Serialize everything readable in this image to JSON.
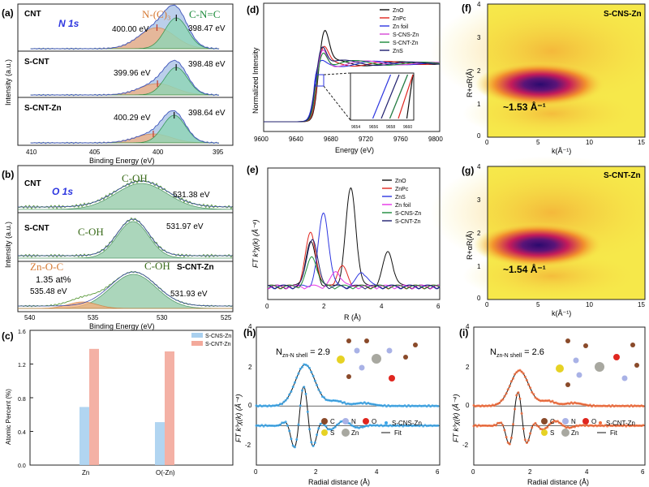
{
  "colors": {
    "zno": "#111111",
    "znpc": "#e0261f",
    "zn_foil": "#2d36e0",
    "zns": "#2d36e0",
    "scns_zn": "#d646d6",
    "scnt_zn": "#1b8a3a",
    "scnt_zn_r": "#20206e",
    "n_c3_fill": "#f3b07f",
    "cnc_fill": "#8fd6b6",
    "envelope_fill": "#aac3e6",
    "cnt_bar": "#a9d0ef",
    "cnz_bar": "#f3a99b",
    "map_low": "#2b0a6e",
    "map_mid": "#c51c5a",
    "map_high": "#f6e84a",
    "fit_marker": "#3aa6ea",
    "fit_marker2": "#f26b3a",
    "atom_c": "#8a4a2a",
    "atom_n": "#a9b2e6",
    "atom_o": "#e0261f",
    "atom_s": "#e6d224",
    "atom_zn": "#a8a8a0"
  },
  "panels": {
    "a": {
      "label": "(a)",
      "core": "N 1s",
      "peak_labels": {
        "nc3": "N-(C)₃",
        "cnc": "C-N=C"
      },
      "samples": [
        {
          "name": "CNT",
          "e1": "400.00 eV",
          "e2": "398.47 eV"
        },
        {
          "name": "S-CNT",
          "e1": "399.96 eV",
          "e2": "398.48 eV"
        },
        {
          "name": "S-CNT-Zn",
          "e1": "400.29 eV",
          "e2": "398.64 eV"
        }
      ],
      "ylabel": "Intensity (a.u.)",
      "xlabel": "Binding Energy (eV)",
      "xticks": [
        "410",
        "405",
        "400",
        "395"
      ]
    },
    "b": {
      "label": "(b)",
      "core": "O 1s",
      "samples": [
        {
          "name": "CNT",
          "peak": "C-OH",
          "e": "531.38 eV"
        },
        {
          "name": "S-CNT",
          "peak": "C-OH",
          "e": "531.97 eV"
        },
        {
          "name": "S-CNT-Zn",
          "peak": "C-OH",
          "e": "531.93 eV",
          "extra": "Zn-O-C",
          "at": "1.35 at%",
          "e2": "535.48 eV"
        }
      ],
      "ylabel": "Intensity (a.u.)",
      "xlabel": "Binding Energy (eV)",
      "xticks": [
        "540",
        "535",
        "530",
        "525"
      ]
    },
    "c": {
      "label": "(c)",
      "ylabel": "Atomic Percent (%)",
      "yticks": [
        "0.0",
        "0.4",
        "0.8",
        "1.2",
        "1.6"
      ]
    },
    "d": {
      "label": "(d)",
      "ylabel": "Normalized Intensity",
      "xlabel": "Energy (eV)",
      "xticks": [
        "9600",
        "9640",
        "9680",
        "9720",
        "9760",
        "9800"
      ],
      "legend": [
        "ZnO",
        "ZnPc",
        "Zn foil",
        "S-CNS-Zn",
        "S-CNT-Zn",
        "ZnS"
      ],
      "inset_ticks": [
        "9654",
        "9656",
        "9658",
        "9660"
      ]
    },
    "e": {
      "label": "(e)",
      "ylabel": "FT k³χ(k) (Å⁻⁴)",
      "xlabel": "R (Å)",
      "xticks": [
        "0",
        "2",
        "4",
        "6"
      ],
      "legend": [
        "ZnO",
        "ZnPc",
        "ZnS",
        "Zn foil",
        "S-CNS-Zn",
        "S-CNT-Zn"
      ]
    },
    "f": {
      "label": "(f)",
      "title": "S-CNS-Zn",
      "annotation": "~1.53 Å⁻¹",
      "ylabel": "R+αR(Å)",
      "xlabel": "k(Å⁻¹)",
      "xticks": [
        "0",
        "5",
        "10",
        "15"
      ],
      "yticks": [
        "0",
        "1",
        "2",
        "3",
        "4"
      ]
    },
    "g": {
      "label": "(g)",
      "title": "S-CNT-Zn",
      "annotation": "~1.54 Å⁻¹",
      "ylabel": "R+αR(Å)",
      "xlabel": "k(Å⁻¹)",
      "xticks": [
        "0",
        "5",
        "10",
        "15"
      ],
      "yticks": [
        "0",
        "1",
        "2",
        "3",
        "4"
      ]
    },
    "h": {
      "label": "(h)",
      "note_main": "N",
      "note_sub": "zn-N shell",
      "note_val": " = 2.9",
      "ylabel": "FT k³χ(k) (Å⁻⁴)",
      "xlabel": "Radial distance (Å)",
      "xticks": [
        "0",
        "2",
        "4",
        "6"
      ],
      "yticks": [
        "4",
        "2",
        "0",
        "-2"
      ],
      "atoms": [
        "C",
        "N",
        "O",
        "S",
        "Zn"
      ],
      "data_label": "S-CNS-Zn",
      "fit_label": "Fit"
    },
    "i": {
      "label": "(i)",
      "note_main": "N",
      "note_sub": "zn-N shell",
      "note_val": " = 2.6",
      "ylabel": "FT k³χ(k) (Å⁻⁴)",
      "xlabel": "Radial distance (Å)",
      "xticks": [
        "0",
        "2",
        "4",
        "6"
      ],
      "yticks": [
        "4",
        "2",
        "0",
        "-2"
      ],
      "atoms": [
        "C",
        "N",
        "O",
        "S",
        "Zn"
      ],
      "data_label": "S-CNT-Zn",
      "fit_label": "Fit"
    }
  },
  "chart_data": [
    {
      "type": "bar",
      "panel": "c",
      "categories": [
        "Zn",
        "O(-Zn)"
      ],
      "series": [
        {
          "name": "S-CNS-Zn",
          "values": [
            0.69,
            0.51
          ]
        },
        {
          "name": "S-CNT-Zn",
          "values": [
            1.38,
            1.35
          ]
        }
      ],
      "ylim": [
        0,
        1.6
      ]
    },
    {
      "type": "line",
      "panel": "d",
      "xlim": [
        9600,
        9800
      ],
      "ylim": [
        0,
        1.6
      ],
      "series": [
        {
          "name": "ZnO",
          "edge": 9661,
          "whiteline": 1.55
        },
        {
          "name": "ZnPc",
          "edge": 9660,
          "whiteline": 1.25
        },
        {
          "name": "Zn foil",
          "edge": 9657,
          "whiteline": 1.05
        },
        {
          "name": "S-CNS-Zn",
          "edge": 9659,
          "whiteline": 1.3
        },
        {
          "name": "S-CNT-Zn",
          "edge": 9659,
          "whiteline": 1.28
        },
        {
          "name": "ZnS",
          "edge": 9658,
          "whiteline": 1.35
        }
      ]
    },
    {
      "type": "line",
      "panel": "e",
      "xlim": [
        0,
        6
      ],
      "series": [
        {
          "name": "ZnO",
          "peaks": [
            [
              1.5,
              0.45
            ],
            [
              2.9,
              1.0
            ],
            [
              4.2,
              0.35
            ]
          ]
        },
        {
          "name": "ZnPc",
          "peaks": [
            [
              1.5,
              0.55
            ],
            [
              2.6,
              0.2
            ]
          ]
        },
        {
          "name": "ZnS",
          "peaks": [
            [
              1.95,
              0.75
            ],
            [
              3.3,
              0.15
            ]
          ]
        },
        {
          "name": "Zn foil",
          "peaks": [
            [
              2.4,
              0.15
            ]
          ]
        },
        {
          "name": "S-CNS-Zn",
          "peaks": [
            [
              1.55,
              0.3
            ]
          ]
        },
        {
          "name": "S-CNT-Zn",
          "peaks": [
            [
              1.55,
              0.5
            ]
          ]
        }
      ]
    },
    {
      "type": "heatmap",
      "panel": "f",
      "xlim": [
        0,
        15
      ],
      "ylim": [
        0,
        4
      ],
      "max_at": [
        5,
        1.53
      ]
    },
    {
      "type": "heatmap",
      "panel": "g",
      "xlim": [
        0,
        15
      ],
      "ylim": [
        0,
        4
      ],
      "max_at": [
        5,
        1.54
      ]
    },
    {
      "type": "line",
      "panel": "h",
      "xlim": [
        0,
        6
      ],
      "ylim": [
        -3,
        4
      ],
      "peak_r": 1.6,
      "magnitude_peak": 2.1
    },
    {
      "type": "line",
      "panel": "i",
      "xlim": [
        0,
        6
      ],
      "ylim": [
        -3,
        4
      ],
      "peak_r": 1.6,
      "magnitude_peak": 1.8
    }
  ]
}
